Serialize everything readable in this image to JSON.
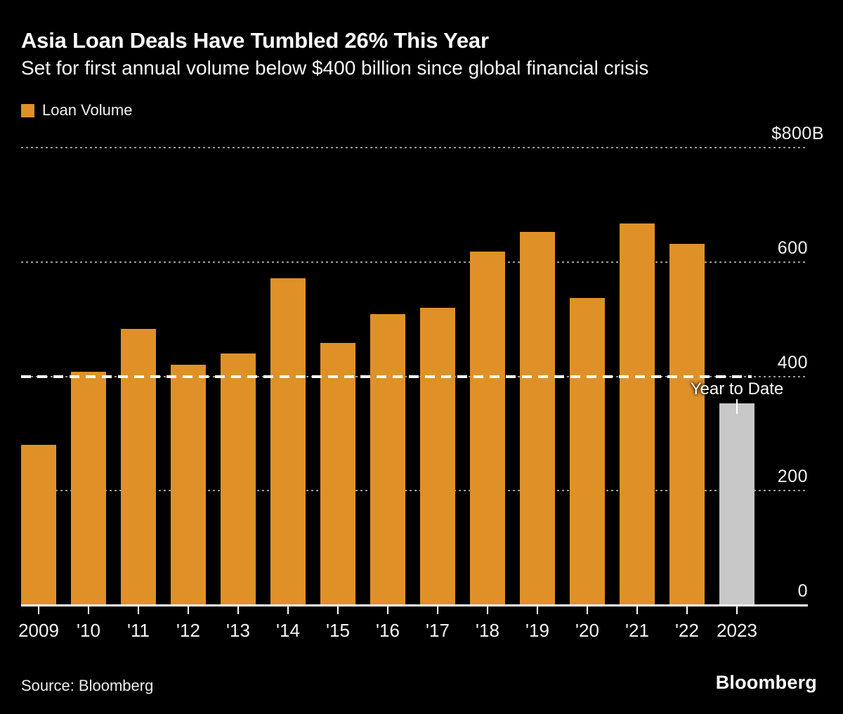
{
  "header": {
    "title": "Asia Loan Deals Have Tumbled 26% This Year",
    "subtitle": "Set for first annual volume below $400 billion since global financial crisis"
  },
  "legend": {
    "label": "Loan Volume",
    "swatch_color": "#DF9128"
  },
  "chart_data": {
    "type": "bar",
    "title": "Asia Loan Deals Have Tumbled 26% This Year",
    "unit": "billions of US dollars",
    "categories": [
      "2009",
      "'10",
      "'11",
      "'12",
      "'13",
      "'14",
      "'15",
      "'16",
      "'17",
      "'18",
      "'19",
      "'20",
      "'21",
      "'22",
      "2023"
    ],
    "series": [
      {
        "name": "Loan Volume",
        "values": [
          280,
          408,
          483,
          420,
          440,
          572,
          458,
          509,
          520,
          618,
          652,
          537,
          667,
          632,
          353
        ]
      }
    ],
    "bar_colors": {
      "default": "#DF9128",
      "year_to_date": "#C8C8C8"
    },
    "ytd_category": "2023",
    "ylim": [
      0,
      800
    ],
    "yticks": [
      {
        "value": 800,
        "label": "$800B"
      },
      {
        "value": 600,
        "label": "600"
      },
      {
        "value": 400,
        "label": "400"
      },
      {
        "value": 200,
        "label": "200"
      },
      {
        "value": 0,
        "label": "0"
      }
    ],
    "gridlines": "dotted",
    "grid_color": "#9a9a9a",
    "background_color": "#000000",
    "reference_line": {
      "value": 400,
      "style": "dashed",
      "color": "#FFFFFF"
    },
    "annotation": {
      "text": "Year to Date",
      "category": "2023"
    },
    "legend_position": "top-left"
  },
  "footer": {
    "source": "Source: Bloomberg",
    "logo": "Bloomberg"
  }
}
